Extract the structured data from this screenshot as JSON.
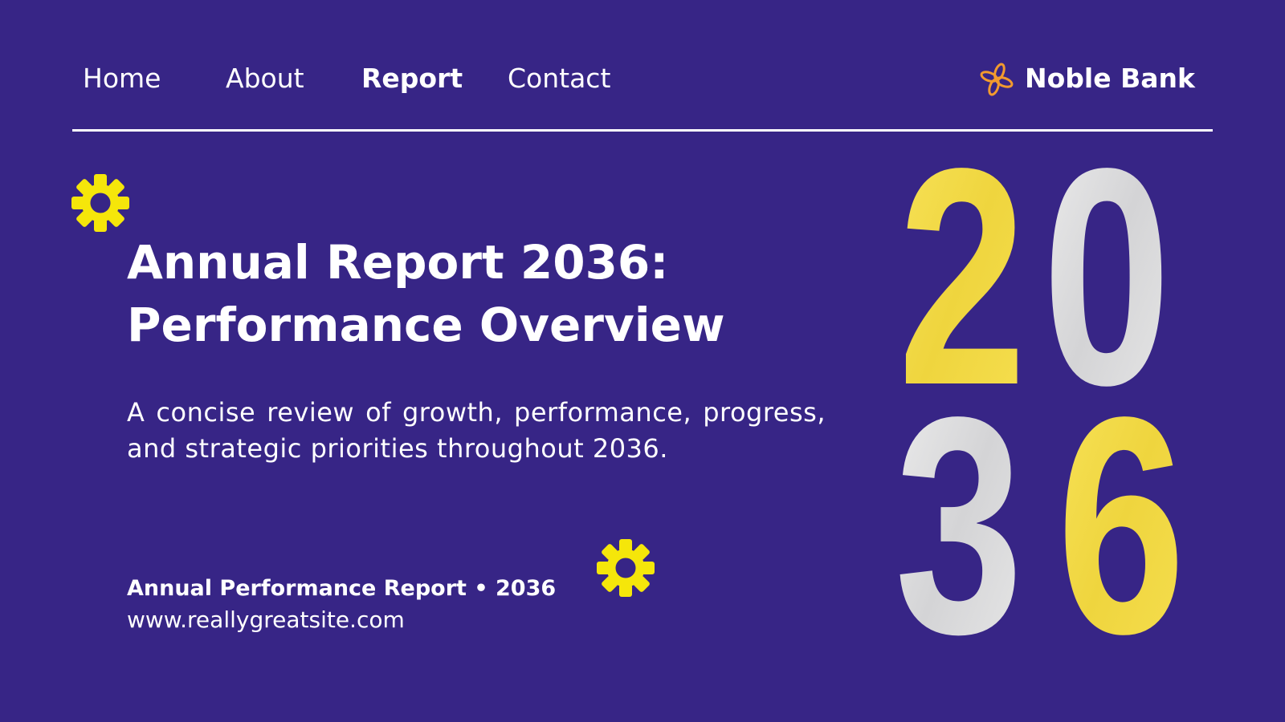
{
  "nav": {
    "items": [
      "Home",
      "About",
      "Report",
      "Contact"
    ],
    "active": "Report",
    "brand": "Noble Bank"
  },
  "hero": {
    "title_lines": [
      "Annual Report 2036:",
      "Performance Overview"
    ],
    "description": "A concise review of growth, performance, progress, and strategic priorities throughout 2036.",
    "footer": "Annual Performance Report • 2036",
    "url": "www.reallygreatsite.com",
    "year_digits": [
      "2",
      "0",
      "3",
      "6"
    ]
  }
}
